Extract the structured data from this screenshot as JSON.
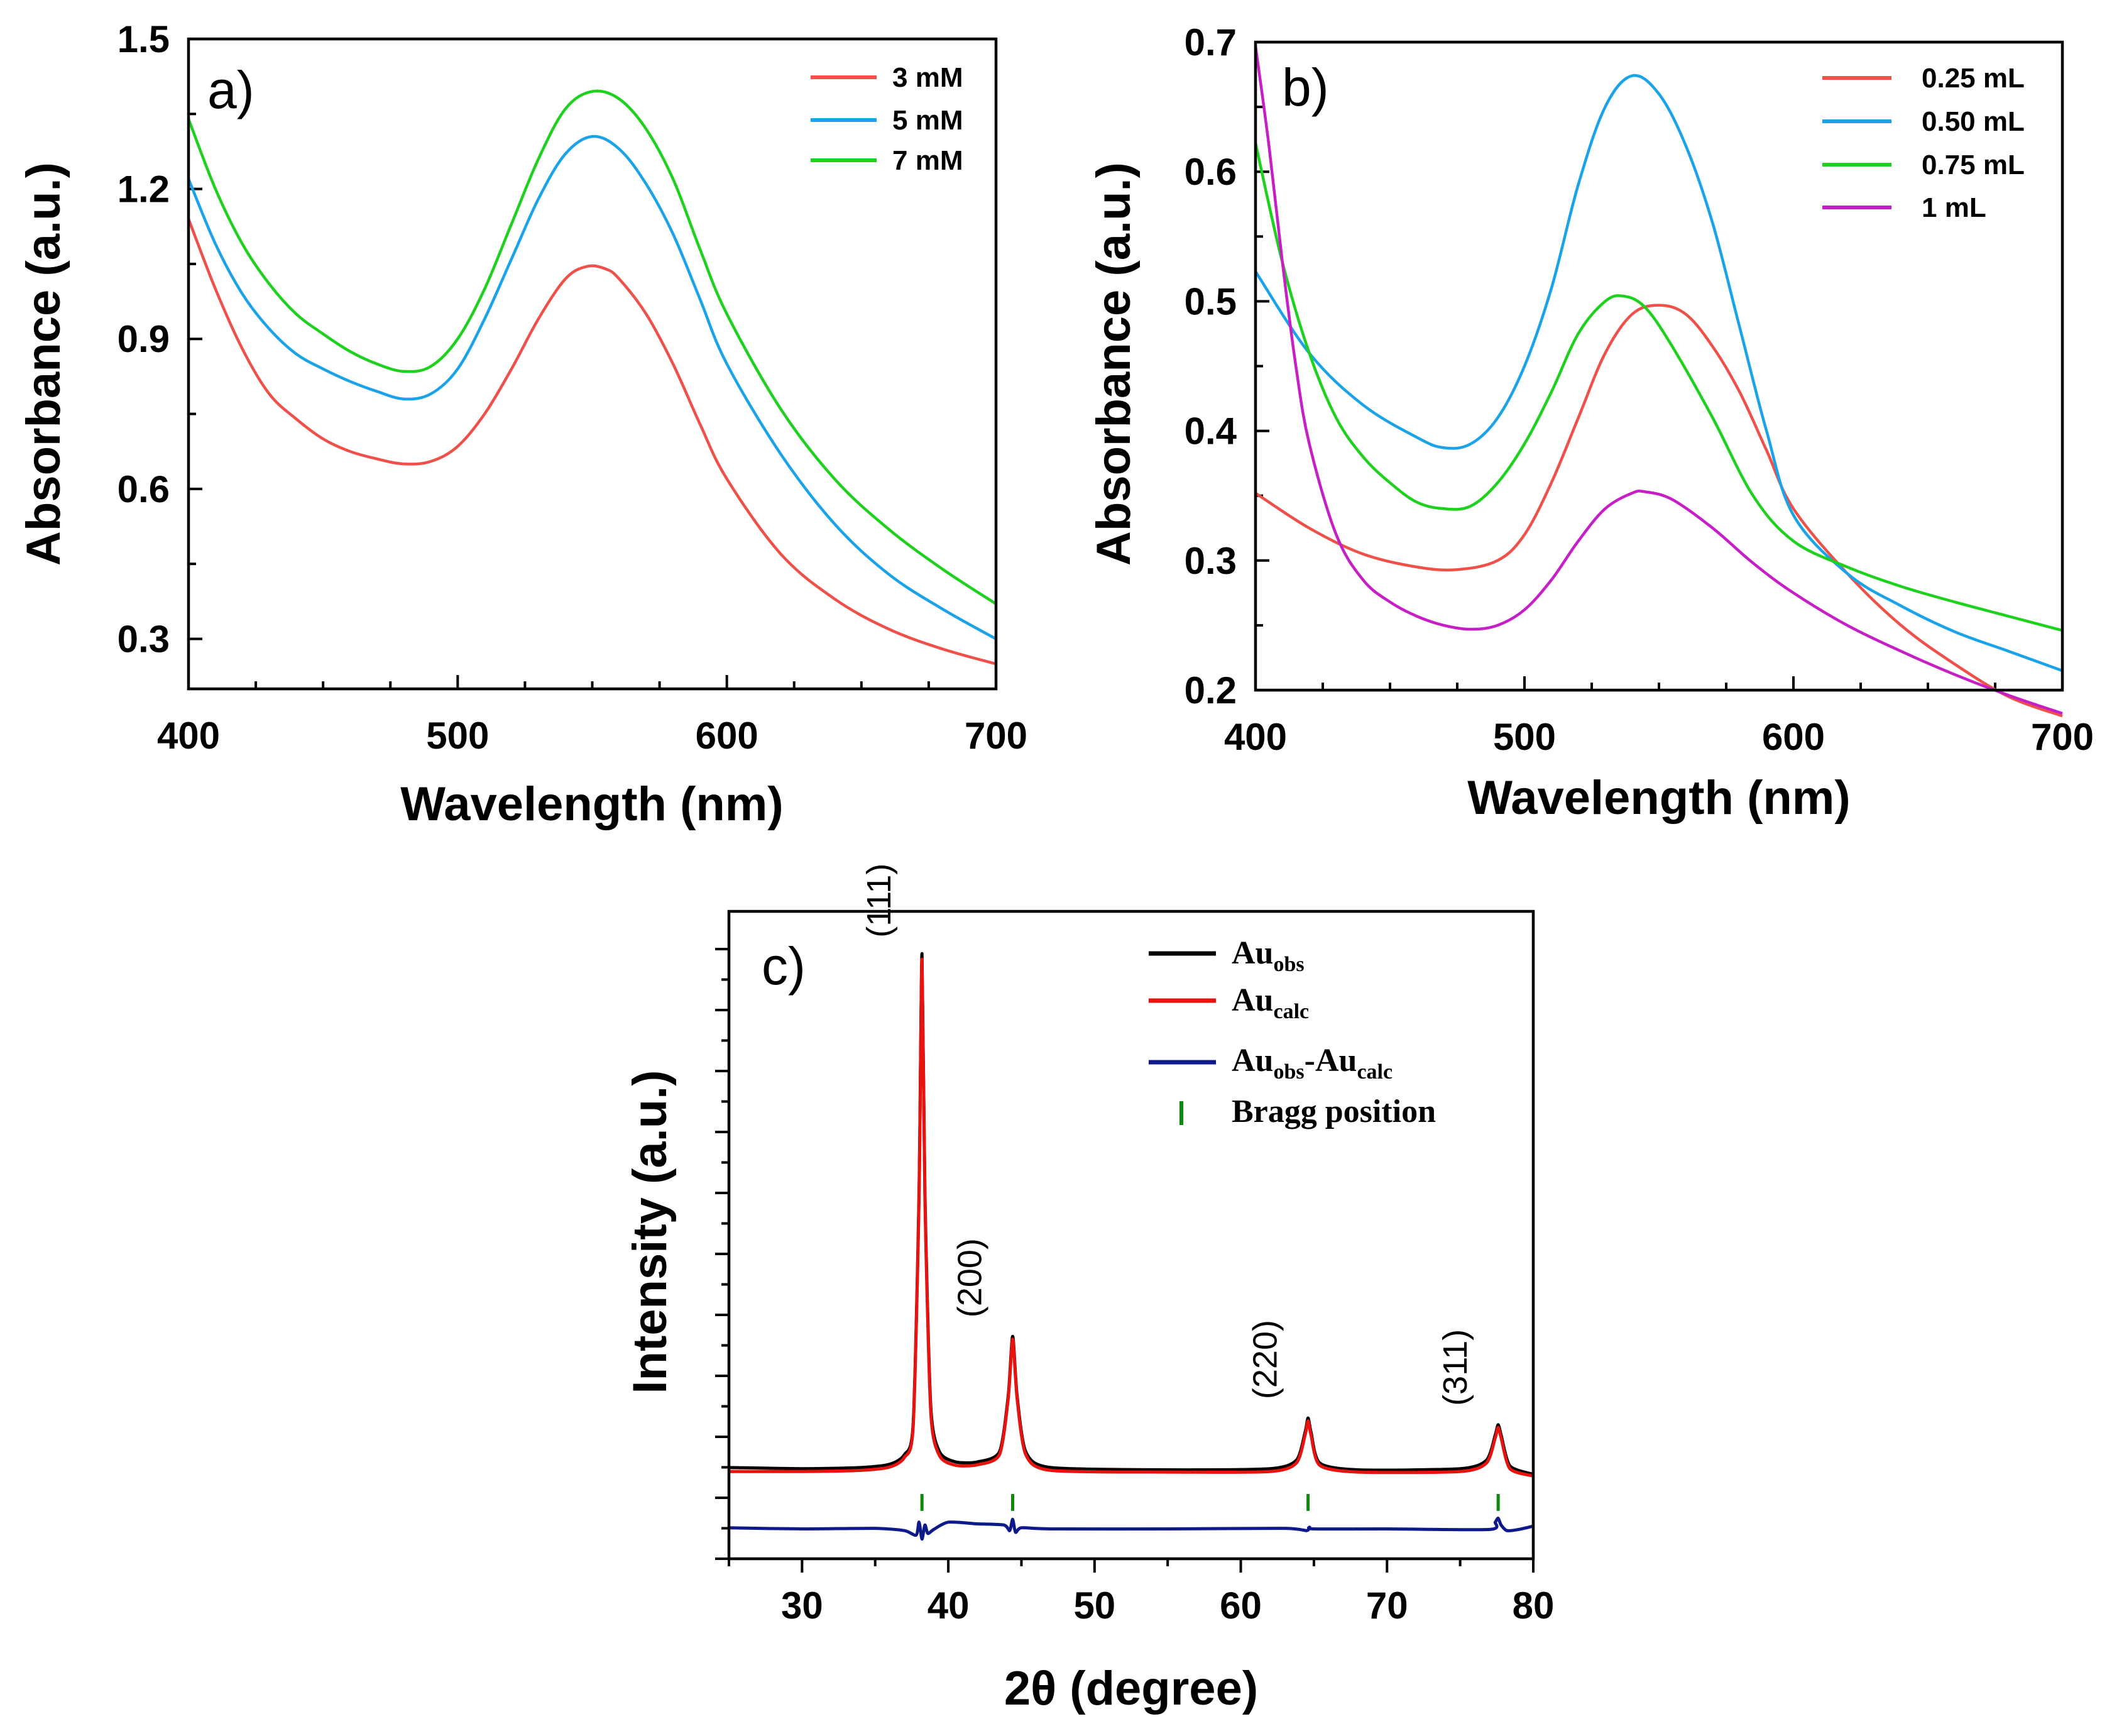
{
  "chart_data": [
    {
      "type": "line",
      "panel_label": "a)",
      "xlabel": "Wavelength (nm)",
      "ylabel": "Absorbance (a.u.)",
      "xlim": [
        400,
        700
      ],
      "ylim": [
        0.2,
        1.5
      ],
      "x_ticks": [
        400,
        500,
        600,
        700
      ],
      "x_tick_labels": [
        "400",
        "500",
        "600",
        "700"
      ],
      "y_ticks": [
        0.3,
        0.6,
        0.9,
        1.2,
        1.5
      ],
      "y_tick_labels": [
        "0.3",
        "0.6",
        "0.9",
        "1.2",
        "1.5"
      ],
      "legend_position": "top-right",
      "series": [
        {
          "name": "3 mM",
          "color": "#f0504a",
          "x": [
            400,
            410,
            420,
            430,
            440,
            450,
            460,
            470,
            480,
            490,
            500,
            510,
            520,
            530,
            540,
            548,
            555,
            560,
            570,
            580,
            590,
            600,
            620,
            640,
            660,
            680,
            700
          ],
          "y": [
            1.14,
            1.0,
            0.88,
            0.79,
            0.74,
            0.7,
            0.675,
            0.66,
            0.65,
            0.655,
            0.685,
            0.75,
            0.84,
            0.94,
            1.02,
            1.045,
            1.04,
            1.02,
            0.95,
            0.85,
            0.73,
            0.62,
            0.47,
            0.38,
            0.32,
            0.28,
            0.25
          ]
        },
        {
          "name": "5 mM",
          "color": "#1aa3e8",
          "x": [
            400,
            410,
            420,
            430,
            440,
            450,
            460,
            470,
            480,
            490,
            500,
            510,
            520,
            530,
            540,
            550,
            560,
            570,
            580,
            590,
            600,
            620,
            640,
            660,
            680,
            700
          ],
          "y": [
            1.22,
            1.09,
            0.99,
            0.92,
            0.87,
            0.84,
            0.815,
            0.795,
            0.78,
            0.79,
            0.84,
            0.94,
            1.06,
            1.18,
            1.27,
            1.305,
            1.28,
            1.21,
            1.11,
            0.98,
            0.85,
            0.67,
            0.53,
            0.43,
            0.36,
            0.3
          ]
        },
        {
          "name": "7 mM",
          "color": "#1fd11f",
          "x": [
            400,
            410,
            420,
            430,
            440,
            450,
            460,
            470,
            480,
            490,
            500,
            510,
            520,
            530,
            540,
            550,
            560,
            570,
            580,
            590,
            600,
            620,
            640,
            660,
            680,
            700
          ],
          "y": [
            1.34,
            1.2,
            1.09,
            1.01,
            0.95,
            0.91,
            0.875,
            0.85,
            0.835,
            0.845,
            0.9,
            1.0,
            1.13,
            1.26,
            1.36,
            1.395,
            1.38,
            1.32,
            1.22,
            1.08,
            0.95,
            0.76,
            0.62,
            0.52,
            0.44,
            0.37
          ]
        }
      ]
    },
    {
      "type": "line",
      "panel_label": "b)",
      "xlabel": "Wavelength (nm)",
      "ylabel": "Absorbance (a.u.)",
      "xlim": [
        400,
        700
      ],
      "ylim": [
        0.2,
        0.7
      ],
      "x_ticks": [
        400,
        500,
        600,
        700
      ],
      "x_tick_labels": [
        "400",
        "500",
        "600",
        "700"
      ],
      "y_ticks": [
        0.2,
        0.3,
        0.4,
        0.5,
        0.6,
        0.7
      ],
      "y_tick_labels": [
        "0.2",
        "0.3",
        "0.4",
        "0.5",
        "0.6",
        "0.7"
      ],
      "legend_position": "top-right",
      "series": [
        {
          "name": "0.25 mL",
          "color": "#f0504a",
          "x": [
            400,
            420,
            440,
            460,
            475,
            490,
            500,
            510,
            520,
            530,
            540,
            550,
            560,
            570,
            580,
            590,
            600,
            620,
            640,
            660,
            680,
            700
          ],
          "y": [
            0.352,
            0.325,
            0.305,
            0.295,
            0.293,
            0.3,
            0.32,
            0.36,
            0.41,
            0.46,
            0.49,
            0.497,
            0.49,
            0.465,
            0.43,
            0.385,
            0.34,
            0.29,
            0.25,
            0.22,
            0.195,
            0.18
          ]
        },
        {
          "name": "0.50 mL",
          "color": "#1aa3e8",
          "x": [
            400,
            420,
            440,
            460,
            470,
            480,
            490,
            500,
            510,
            520,
            530,
            540,
            550,
            560,
            570,
            580,
            590,
            600,
            620,
            640,
            660,
            680,
            700
          ],
          "y": [
            0.523,
            0.46,
            0.42,
            0.395,
            0.387,
            0.39,
            0.41,
            0.45,
            0.51,
            0.59,
            0.65,
            0.674,
            0.66,
            0.62,
            0.56,
            0.48,
            0.4,
            0.335,
            0.29,
            0.265,
            0.245,
            0.23,
            0.215
          ]
        },
        {
          "name": "0.75 mL",
          "color": "#1fd11f",
          "x": [
            400,
            410,
            420,
            430,
            440,
            450,
            460,
            470,
            480,
            490,
            500,
            510,
            520,
            530,
            537,
            545,
            555,
            570,
            585,
            600,
            620,
            640,
            660,
            680,
            700
          ],
          "y": [
            0.622,
            0.53,
            0.46,
            0.41,
            0.38,
            0.36,
            0.345,
            0.34,
            0.342,
            0.36,
            0.39,
            0.43,
            0.475,
            0.5,
            0.504,
            0.495,
            0.465,
            0.41,
            0.35,
            0.315,
            0.295,
            0.28,
            0.268,
            0.257,
            0.246
          ]
        },
        {
          "name": "1 mL",
          "color": "#c61fc6",
          "x": [
            400,
            405,
            410,
            415,
            420,
            430,
            440,
            450,
            460,
            470,
            480,
            490,
            500,
            510,
            520,
            530,
            540,
            545,
            555,
            570,
            585,
            600,
            620,
            640,
            660,
            680,
            700
          ],
          "y": [
            0.697,
            0.62,
            0.53,
            0.45,
            0.39,
            0.32,
            0.285,
            0.268,
            0.257,
            0.25,
            0.247,
            0.25,
            0.262,
            0.285,
            0.315,
            0.34,
            0.352,
            0.353,
            0.347,
            0.325,
            0.298,
            0.275,
            0.25,
            0.23,
            0.212,
            0.196,
            0.182
          ]
        }
      ]
    },
    {
      "type": "line",
      "panel_label": "c)",
      "xlabel": "2θ (degree)",
      "ylabel": "Intensity (a.u.)",
      "xlim": [
        25,
        80
      ],
      "ylim": [
        -0.15,
        1.0
      ],
      "x_ticks": [
        30,
        40,
        50,
        60,
        70,
        80
      ],
      "x_tick_labels": [
        "30",
        "40",
        "50",
        "60",
        "70",
        "80"
      ],
      "legend_position": "top-right",
      "peaks": [
        {
          "label": "(111)",
          "x": 38.2,
          "y": 0.92
        },
        {
          "label": "(200)",
          "x": 44.4,
          "y": 0.245
        },
        {
          "label": "(220)",
          "x": 64.6,
          "y": 0.1
        },
        {
          "label": "(311)",
          "x": 77.6,
          "y": 0.088
        }
      ],
      "bragg_positions": [
        38.2,
        44.4,
        64.6,
        77.6
      ],
      "series": [
        {
          "name": "Au_obs",
          "color": "#000000",
          "x": [
            25,
            30,
            34,
            36,
            37,
            37.6,
            38.0,
            38.2,
            38.4,
            38.8,
            39.4,
            40.5,
            42,
            43.5,
            44.1,
            44.4,
            44.7,
            45.3,
            47,
            55,
            62,
            63.8,
            64.4,
            64.6,
            64.8,
            65.4,
            68,
            75,
            76.8,
            77.4,
            77.6,
            77.8,
            78.4,
            80
          ],
          "y": [
            0.012,
            0.01,
            0.012,
            0.018,
            0.035,
            0.09,
            0.5,
            0.925,
            0.5,
            0.12,
            0.04,
            0.022,
            0.022,
            0.04,
            0.14,
            0.245,
            0.14,
            0.04,
            0.012,
            0.008,
            0.01,
            0.025,
            0.075,
            0.1,
            0.075,
            0.02,
            0.008,
            0.01,
            0.025,
            0.07,
            0.088,
            0.07,
            0.015,
            0.0
          ]
        },
        {
          "name": "Au_calc",
          "color": "#e8120e",
          "x": [
            25,
            30,
            34,
            36,
            37,
            37.6,
            38.0,
            38.2,
            38.4,
            38.8,
            39.4,
            40.5,
            42,
            43.5,
            44.1,
            44.4,
            44.7,
            45.3,
            47,
            55,
            62,
            63.8,
            64.4,
            64.6,
            64.8,
            65.4,
            68,
            75,
            76.8,
            77.4,
            77.6,
            77.8,
            78.4,
            80
          ],
          "y": [
            0.005,
            0.005,
            0.007,
            0.013,
            0.03,
            0.085,
            0.49,
            0.915,
            0.49,
            0.11,
            0.033,
            0.016,
            0.017,
            0.035,
            0.135,
            0.24,
            0.135,
            0.035,
            0.007,
            0.004,
            0.005,
            0.02,
            0.07,
            0.095,
            0.07,
            0.016,
            0.004,
            0.005,
            0.02,
            0.065,
            0.083,
            0.065,
            0.01,
            -0.003
          ]
        },
        {
          "name": "Au_obs-Au_calc",
          "color": "#0e1a8a",
          "x": [
            25,
            30,
            35,
            37,
            37.8,
            38.0,
            38.2,
            38.4,
            38.6,
            39,
            40,
            42,
            43.8,
            44.2,
            44.4,
            44.6,
            45,
            47,
            55,
            63,
            64.5,
            64.7,
            65,
            70,
            77,
            77.4,
            77.6,
            77.8,
            78.2,
            79,
            80
          ],
          "y": [
            -0.095,
            -0.097,
            -0.096,
            -0.1,
            -0.108,
            -0.085,
            -0.115,
            -0.09,
            -0.105,
            -0.098,
            -0.085,
            -0.088,
            -0.09,
            -0.1,
            -0.08,
            -0.103,
            -0.095,
            -0.097,
            -0.097,
            -0.096,
            -0.1,
            -0.094,
            -0.097,
            -0.097,
            -0.098,
            -0.085,
            -0.078,
            -0.09,
            -0.1,
            -0.098,
            -0.092
          ]
        }
      ]
    }
  ],
  "legend_c": {
    "obs_main": "Au",
    "obs_sub": "obs",
    "calc_main": "Au",
    "calc_sub": "calc",
    "diff_main1": "Au",
    "diff_sub1": "obs",
    "diff_dash": "-",
    "diff_main2": "Au",
    "diff_sub2": "calc",
    "bragg_label": "Bragg position",
    "bragg_color": "#0c8a0c"
  }
}
